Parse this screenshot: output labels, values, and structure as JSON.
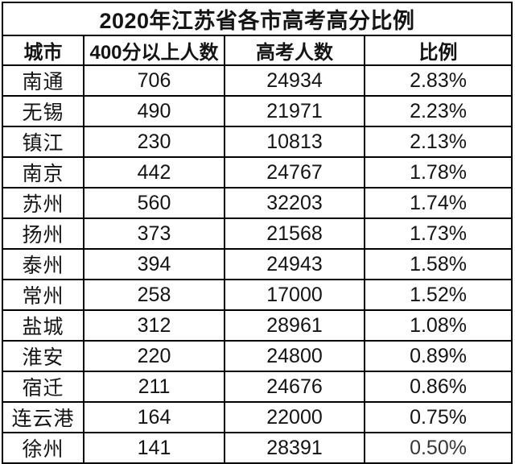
{
  "chart_data": {
    "type": "table",
    "title": "2020年江苏省各市高考高分比例",
    "columns": [
      "城市",
      "400分以上人数",
      "高考人数",
      "比例"
    ],
    "column_semantics": [
      "city",
      "count-above-400",
      "total-exam-takers",
      "ratio"
    ],
    "rows": [
      [
        "南通",
        "706",
        "24934",
        "2.83%"
      ],
      [
        "无锡",
        "490",
        "21971",
        "2.23%"
      ],
      [
        "镇江",
        "230",
        "10813",
        "2.13%"
      ],
      [
        "南京",
        "442",
        "24767",
        "1.78%"
      ],
      [
        "苏州",
        "560",
        "32203",
        "1.74%"
      ],
      [
        "扬州",
        "373",
        "21568",
        "1.73%"
      ],
      [
        "泰州",
        "394",
        "24943",
        "1.58%"
      ],
      [
        "常州",
        "258",
        "17000",
        "1.52%"
      ],
      [
        "盐城",
        "312",
        "28961",
        "1.08%"
      ],
      [
        "淮安",
        "220",
        "24800",
        "0.89%"
      ],
      [
        "宿迁",
        "211",
        "24676",
        "0.86%"
      ],
      [
        "连云港",
        "164",
        "22000",
        "0.75%"
      ],
      [
        "徐州",
        "141",
        "28391",
        "0.50%"
      ]
    ]
  },
  "visual": {
    "border_color": "#000000",
    "text_color": "#141414",
    "background_color": "#ffffff",
    "faded_cell": {
      "row_index": 12,
      "column_index": 3
    }
  }
}
